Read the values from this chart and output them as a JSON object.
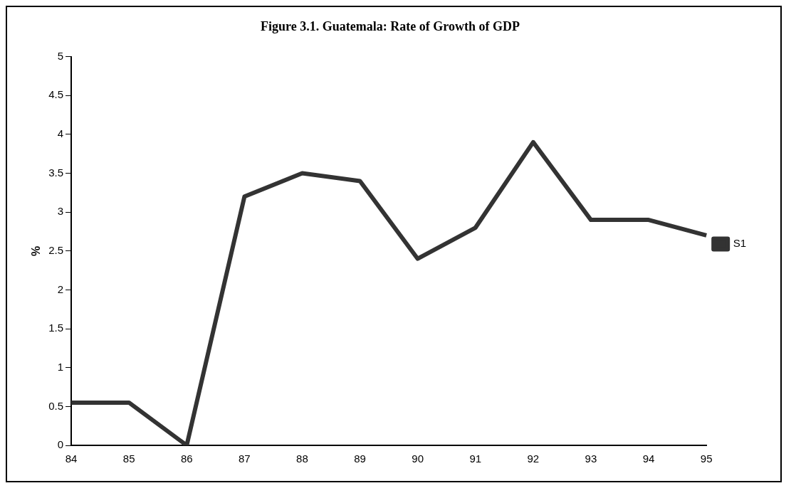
{
  "chart_data": {
    "type": "line",
    "title": "Figure 3.1. Guatemala: Rate of Growth of GDP",
    "ylabel": "%",
    "categories": [
      "84",
      "85",
      "86",
      "87",
      "88",
      "89",
      "90",
      "91",
      "92",
      "93",
      "94",
      "95"
    ],
    "series": [
      {
        "name": "S1",
        "color": "#333333",
        "values": [
          0.55,
          0.55,
          0.0,
          3.2,
          3.5,
          3.4,
          2.4,
          2.8,
          3.9,
          2.9,
          2.9,
          2.7
        ]
      }
    ],
    "ylim": [
      0,
      5
    ],
    "yticks": [
      0,
      0.5,
      1,
      1.5,
      2,
      2.5,
      3,
      3.5,
      4,
      4.5,
      5
    ],
    "grid": false,
    "legend": "right",
    "marker": "none",
    "line_style": "solid"
  }
}
